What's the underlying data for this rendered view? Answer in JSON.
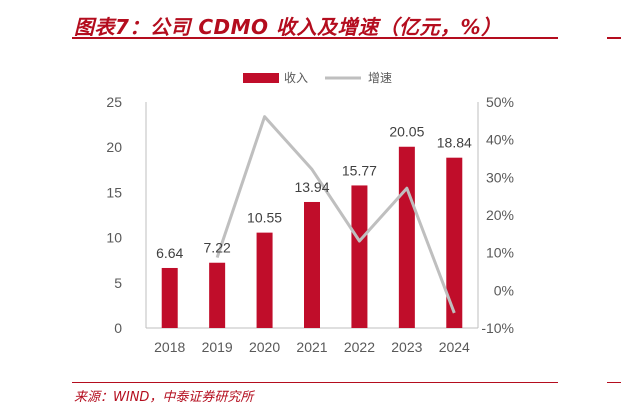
{
  "header": {
    "title": "图表7：公司 CDMO 收入及增速（亿元，%）"
  },
  "footer": {
    "source": "来源：WIND，中泰证券研究所"
  },
  "colors": {
    "accent": "#b40d1e",
    "bar": "#c00d2a",
    "line": "#bfbfbf"
  },
  "chart_data": {
    "type": "bar",
    "categories": [
      "2018",
      "2019",
      "2020",
      "2021",
      "2022",
      "2023",
      "2024"
    ],
    "series": [
      {
        "name": "收入",
        "type": "bar",
        "axis": "left",
        "values": [
          6.64,
          7.22,
          10.55,
          13.94,
          15.77,
          20.05,
          18.84
        ],
        "labels": [
          "6.64",
          "7.22",
          "10.55",
          "13.94",
          "15.77",
          "20.05",
          "18.84"
        ]
      },
      {
        "name": "增速",
        "type": "line",
        "axis": "right",
        "values": [
          null,
          8.7,
          46.1,
          32.1,
          13.1,
          27.1,
          -6.0
        ]
      }
    ],
    "y_left": {
      "min": 0,
      "max": 25,
      "ticks": [
        "0",
        "5",
        "10",
        "15",
        "20",
        "25"
      ]
    },
    "y_right": {
      "min": -10,
      "max": 50,
      "ticks": [
        "-10%",
        "0%",
        "10%",
        "20%",
        "30%",
        "40%",
        "50%"
      ]
    },
    "title": "",
    "xlabel": "",
    "ylabel": "",
    "legend": "top-center",
    "grid": false
  }
}
